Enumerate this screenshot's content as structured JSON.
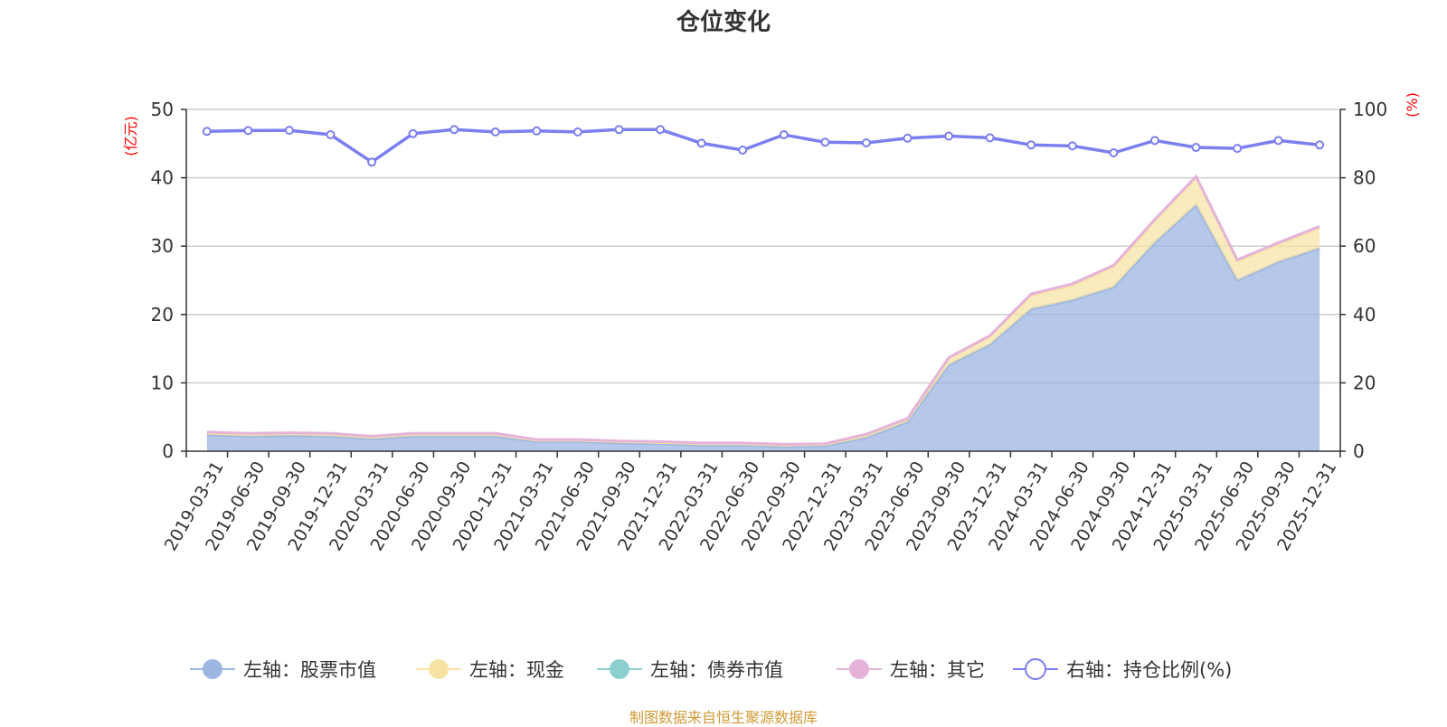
{
  "title": "仓位变化",
  "footer": "制图数据来自恒生聚源数据库",
  "colors": {
    "stock": "#9cb6e1",
    "cash": "#f7e3a3",
    "bond": "#8ccfd0",
    "other": "#e5b3da",
    "ratio": "#7b7ff0",
    "axis_unit": "#ff0000",
    "grid": "#cccccc",
    "axis": "#333333"
  },
  "chart_data": {
    "type": "area",
    "title": "仓位变化",
    "categories": [
      "2019-03-31",
      "2019-06-30",
      "2019-09-30",
      "2019-12-31",
      "2020-03-31",
      "2020-06-30",
      "2020-09-30",
      "2020-12-31",
      "2021-03-31",
      "2021-06-30",
      "2021-09-30",
      "2021-12-31",
      "2022-03-31",
      "2022-06-30",
      "2022-09-30",
      "2022-12-31",
      "2023-03-31",
      "2023-06-30",
      "2023-09-30",
      "2023-12-31",
      "2024-03-31",
      "2024-06-30",
      "2024-09-30",
      "2024-12-31",
      "2025-03-31",
      "2025-06-30",
      "2025-09-30",
      "2025-12-31"
    ],
    "left_axis": {
      "unit": "(亿元)",
      "ylim": [
        0,
        50
      ],
      "ticks": [
        0,
        10,
        20,
        30,
        40,
        50
      ]
    },
    "right_axis": {
      "unit": "(%)",
      "ylim": [
        0,
        100
      ],
      "ticks": [
        0,
        20,
        40,
        60,
        80,
        100
      ]
    },
    "grid": true,
    "legend_position": "bottom",
    "series": [
      {
        "name": "左轴：股票市值",
        "axis": "left",
        "stacked": true,
        "color": "#9cb6e1",
        "values": [
          2.4,
          2.2,
          2.3,
          2.2,
          1.8,
          2.2,
          2.2,
          2.2,
          1.4,
          1.4,
          1.2,
          1.1,
          0.9,
          0.9,
          0.7,
          0.8,
          2.0,
          4.3,
          12.6,
          15.6,
          20.8,
          22.1,
          24.0,
          30.5,
          36.0,
          25.0,
          27.7,
          29.7
        ]
      },
      {
        "name": "左轴：现金",
        "axis": "left",
        "stacked": true,
        "color": "#f7e3a3",
        "values": [
          0.3,
          0.3,
          0.3,
          0.3,
          0.3,
          0.3,
          0.3,
          0.3,
          0.2,
          0.2,
          0.2,
          0.2,
          0.2,
          0.2,
          0.2,
          0.2,
          0.4,
          0.4,
          1.0,
          1.2,
          2.0,
          2.2,
          3.0,
          3.2,
          4.0,
          2.8,
          2.6,
          3.0
        ]
      },
      {
        "name": "左轴：债券市值",
        "axis": "left",
        "stacked": true,
        "color": "#8ccfd0",
        "values": [
          0,
          0,
          0,
          0,
          0,
          0,
          0,
          0,
          0,
          0,
          0,
          0,
          0,
          0,
          0,
          0,
          0,
          0,
          0,
          0,
          0,
          0,
          0,
          0,
          0,
          0,
          0,
          0
        ]
      },
      {
        "name": "左轴：其它",
        "axis": "left",
        "stacked": true,
        "color": "#e5b3da",
        "values": [
          0.1,
          0.1,
          0.1,
          0.1,
          0.1,
          0.1,
          0.1,
          0.1,
          0.1,
          0.1,
          0.1,
          0.1,
          0.1,
          0.1,
          0.1,
          0.1,
          0.1,
          0.1,
          0.1,
          0.1,
          0.2,
          0.2,
          0.2,
          0.2,
          0.2,
          0.2,
          0.2,
          0.2
        ]
      },
      {
        "name": "右轴：持仓比例(%)",
        "axis": "right",
        "stacked": false,
        "color": "#7b7ff0",
        "values": [
          93.6,
          93.8,
          93.9,
          92.6,
          84.6,
          92.9,
          94.1,
          93.4,
          93.7,
          93.4,
          94.1,
          94.1,
          90.1,
          88.1,
          92.6,
          90.4,
          90.2,
          91.6,
          92.2,
          91.7,
          89.6,
          89.3,
          87.3,
          90.9,
          88.9,
          88.6,
          90.9,
          89.6
        ]
      }
    ]
  }
}
